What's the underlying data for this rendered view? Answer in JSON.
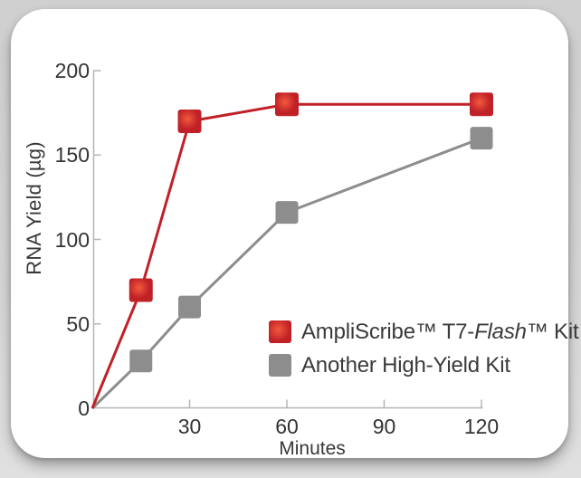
{
  "colors": {
    "page_background": "#d4d4d4",
    "card_background": "#ffffff",
    "axis_color": "#b5b5b5",
    "text_color": "#383838",
    "brand_red": "#c02127",
    "brand_gray": "#8d8d8d"
  },
  "chart_data": {
    "type": "line",
    "title": "",
    "xlabel": "Minutes",
    "ylabel": "RNA Yield (µg)",
    "x": [
      0,
      15,
      30,
      60,
      120
    ],
    "series": [
      {
        "name": "AmpliScribe™ T7-Flash™ Kit",
        "values": [
          0,
          70,
          170,
          180,
          180
        ],
        "color": "#c02127",
        "marker_center": "#f3593c",
        "marker": "square",
        "marker_gradient": true,
        "marker_size": 26,
        "line_width": 3
      },
      {
        "name": "Another High-Yield Kit",
        "values": [
          0,
          28,
          60,
          116,
          160
        ],
        "color": "#8d8d8d",
        "marker": "square",
        "marker_gradient": false,
        "marker_size": 25,
        "line_width": 3
      }
    ],
    "xticks": [
      30,
      60,
      90,
      120
    ],
    "yticks": [
      0,
      50,
      100,
      150,
      200
    ],
    "origin_label": "0",
    "xlim": [
      0,
      120
    ],
    "ylim": [
      0,
      200
    ],
    "grid": false,
    "legend_position": "lower-right",
    "legend": [
      {
        "swatch_color": "#c02127",
        "swatch_center": "#f3593c",
        "gradient": true,
        "label": "AmpliScribe™ T7-Flash™ Kit",
        "parts": [
          {
            "text": "AmpliScribe™ T7-"
          },
          {
            "text": "Flash",
            "italic": true
          },
          {
            "text": "™ Kit"
          }
        ]
      },
      {
        "swatch_color": "#8d8d8d",
        "gradient": false,
        "label": "Another High-Yield Kit",
        "parts": [
          {
            "text": "Another High-Yield Kit"
          }
        ]
      }
    ]
  }
}
